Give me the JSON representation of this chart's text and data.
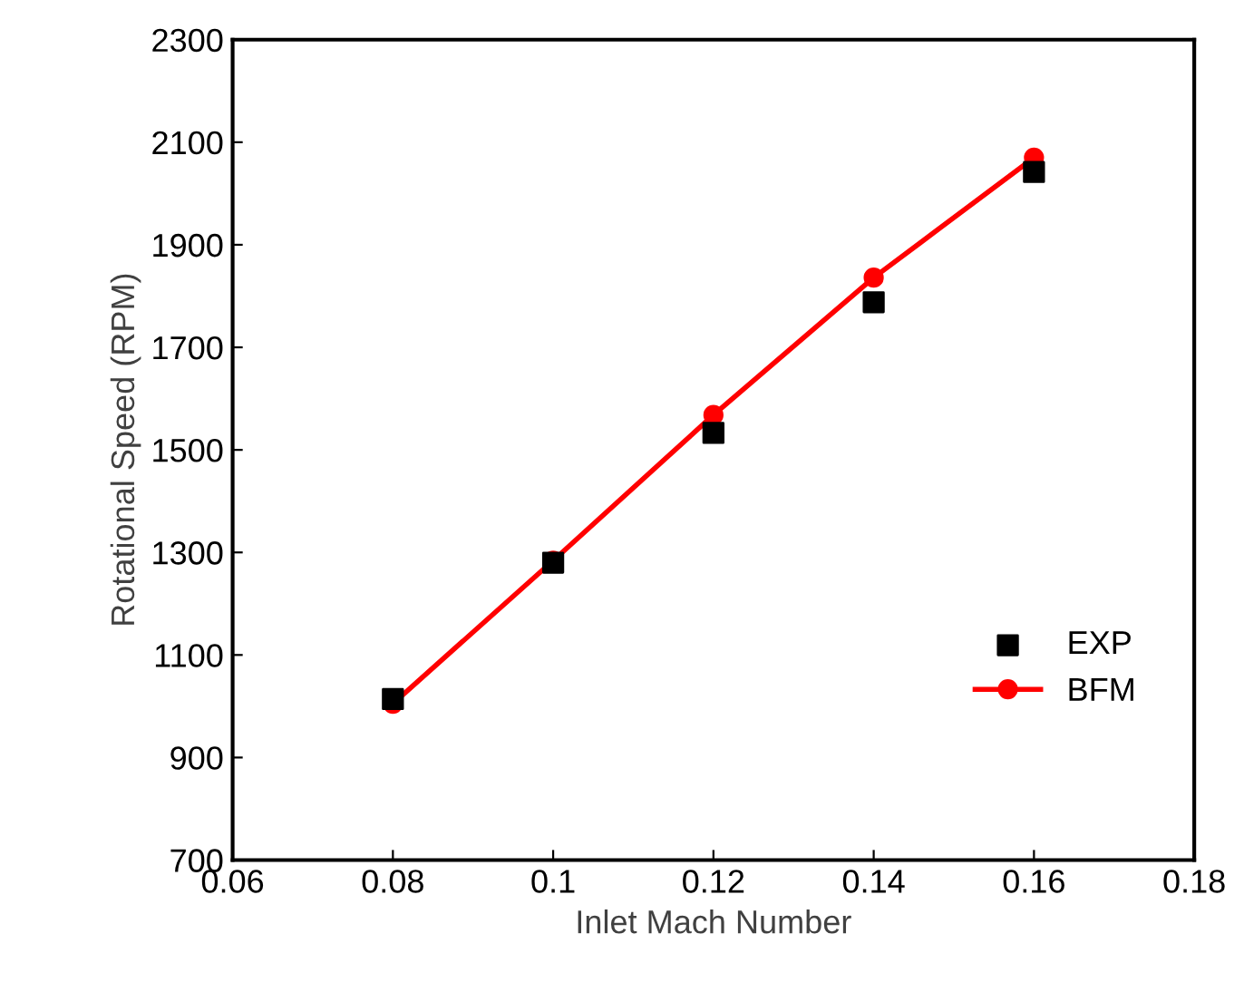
{
  "chart_data": {
    "type": "scatter",
    "xlabel": "Inlet Mach Number",
    "ylabel": "Rotational Speed (RPM)",
    "x": [
      0.08,
      0.1,
      0.12,
      0.14,
      0.16
    ],
    "series": [
      {
        "name": "EXP",
        "color": "#000000",
        "marker": "square",
        "values": [
          1014,
          1280,
          1533,
          1788,
          2042
        ]
      },
      {
        "name": "BFM",
        "type": "line",
        "color": "#ff0000",
        "marker": "circle",
        "line_style": "solid",
        "values": [
          1005,
          1284,
          1568,
          1836,
          2070
        ]
      }
    ],
    "xlim": [
      0.06,
      0.18
    ],
    "xticks": [
      0.06,
      0.08,
      {
        "value": 0.1,
        "label": "0.1"
      },
      0.12,
      0.14,
      0.16,
      0.18
    ],
    "ylim": [
      700,
      2300
    ],
    "yticks": [
      700,
      900,
      1100,
      1300,
      1500,
      1700,
      1900,
      2100,
      2300
    ],
    "grid": false,
    "legend": "bottom right"
  }
}
